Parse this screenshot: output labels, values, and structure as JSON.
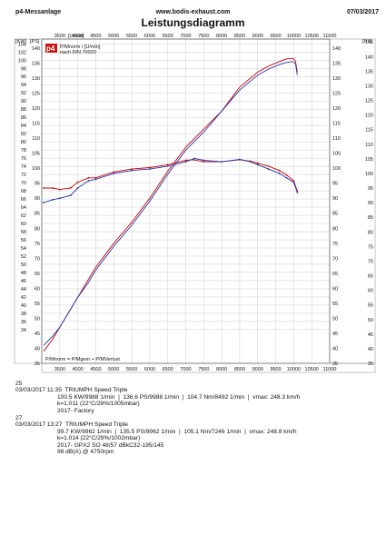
{
  "header": {
    "left": "p4-Messanlage",
    "center": "www.bodis-exhaust.com",
    "right": "07/03/2017"
  },
  "chart_data": {
    "type": "line",
    "title": "Leistungsdiagramm",
    "top_axis_label": "[U/min]",
    "x_ticks": [
      "3500",
      "4000",
      "4500",
      "5000",
      "5500",
      "6000",
      "6500",
      "7000",
      "7500",
      "8000",
      "8500",
      "9000",
      "9500",
      "10000",
      "10500",
      "11000"
    ],
    "xlim": [
      3000,
      11000
    ],
    "kw_axis": {
      "label": "[KW]",
      "ticks": [
        34,
        36,
        38,
        40,
        42,
        44,
        46,
        48,
        50,
        52,
        54,
        56,
        58,
        60,
        62,
        64,
        66,
        68,
        70,
        72,
        74,
        76,
        78,
        80,
        82,
        84,
        86,
        88,
        90,
        92,
        94,
        96,
        98,
        100,
        102,
        104
      ]
    },
    "ps_left_axis": {
      "label": "[PS]",
      "ticks": [
        35,
        40,
        45,
        50,
        55,
        60,
        65,
        70,
        75,
        80,
        85,
        90,
        95,
        100,
        105,
        110,
        115,
        120,
        125,
        130,
        135,
        140
      ]
    },
    "ps_right_axis": {
      "label": "[PS]",
      "ticks": [
        35,
        40,
        45,
        50,
        55,
        60,
        65,
        70,
        75,
        80,
        85,
        90,
        95,
        100,
        105,
        110,
        115,
        120,
        125,
        130,
        135,
        140
      ]
    },
    "nm_axis": {
      "ticks": [
        35,
        40,
        45,
        50,
        55,
        60,
        65,
        70,
        75,
        80,
        85,
        90,
        95,
        100,
        105,
        110,
        115,
        120,
        125,
        130,
        135,
        140,
        145
      ]
    },
    "ps_range": [
      35,
      143
    ],
    "nm_range": [
      35,
      146
    ],
    "legend": {
      "logo": "p4",
      "line1": "P/Mnorm / [U/min]",
      "line2": "nach DIN 70020"
    },
    "bottom_note": "P/Mnorm = P/Mgem + P/MVerlust",
    "series": [
      {
        "name": "",
        "color": "#cc0000",
        "kind": "power",
        "x": [
          3050,
          3300,
          3500,
          3800,
          4000,
          4300,
          4500,
          5000,
          5500,
          6000,
          6500,
          7000,
          7500,
          8000,
          8500,
          9000,
          9300,
          9600,
          9800,
          9988,
          10050,
          10100
        ],
        "y": [
          39,
          43,
          47,
          53,
          57,
          63,
          67,
          75,
          82,
          90,
          99,
          107,
          113,
          119,
          127,
          132,
          134,
          135.5,
          136.4,
          136.6,
          135.6,
          132
        ]
      },
      {
        "name": "",
        "color": "#2233aa",
        "kind": "power",
        "x": [
          3050,
          3300,
          3500,
          3800,
          4000,
          4300,
          4500,
          5000,
          5500,
          6000,
          6500,
          7000,
          7500,
          8000,
          8500,
          9000,
          9300,
          9600,
          9800,
          9962,
          10050,
          10100
        ],
        "y": [
          41,
          44,
          47,
          53,
          57,
          62,
          66,
          74,
          81,
          89,
          98,
          106,
          112,
          119,
          126,
          131,
          133,
          134.5,
          135.2,
          135.5,
          134.8,
          131
        ]
      },
      {
        "name": "",
        "color": "#cc0000",
        "kind": "torque",
        "x": [
          3050,
          3300,
          3500,
          3800,
          4000,
          4300,
          4500,
          5000,
          5500,
          6000,
          6500,
          7000,
          7200,
          7500,
          8000,
          8500,
          8800,
          9000,
          9300,
          9600,
          9800,
          10000,
          10100
        ],
        "y": [
          95,
          95,
          94.5,
          95,
          97,
          98.5,
          98.5,
          100.5,
          101.5,
          102,
          103,
          104.5,
          104.7,
          104,
          104,
          104.7,
          104.2,
          103.5,
          102.5,
          101,
          99.5,
          97.5,
          94
        ]
      },
      {
        "name": "",
        "color": "#2233aa",
        "kind": "torque",
        "x": [
          3050,
          3300,
          3500,
          3800,
          4000,
          4300,
          4500,
          5000,
          5500,
          6000,
          6500,
          7000,
          7246,
          7500,
          8000,
          8500,
          8800,
          9000,
          9300,
          9600,
          9800,
          10000,
          10100
        ],
        "y": [
          90,
          91,
          91.5,
          92.5,
          95,
          97.5,
          98,
          100,
          101,
          101.5,
          102.5,
          104,
          105.1,
          104.5,
          104,
          104.8,
          104,
          103,
          101.5,
          100,
          98.5,
          97,
          93.5
        ]
      }
    ]
  },
  "runs": [
    {
      "number": "25",
      "name": "TRIUMPH Speed Triple",
      "date": "03/03/2017",
      "time": "11:35",
      "summary": "100.5 KW/9988 1/min  |  136.6 PS/9988 1/min  |  104.7 Nm/8492 1/min  |  vmax: 248.3 km/h",
      "line2": "k=1.011 (22°C/28%/1005mbar)",
      "line3": "2017- Factory",
      "line4": "",
      "color": "#cc0000"
    },
    {
      "number": "27",
      "name": "TRIUMPH Speed Triple",
      "date": "03/03/2017",
      "time": "13:27",
      "summary": "99.7 KW/9962 1/min  |  135.5 PS/9962 1/min  |  105.1 Nm/7246 1/min  |  vmax: 248.8 km/h",
      "line2": "k=1.014 (22°C/29%/1002mbar)",
      "line3": "2017- GPX2 SO 48/57 dBkC32-195/145",
      "line4": "98 dB(A) @ 4750rpm",
      "color": "#2233aa"
    }
  ]
}
